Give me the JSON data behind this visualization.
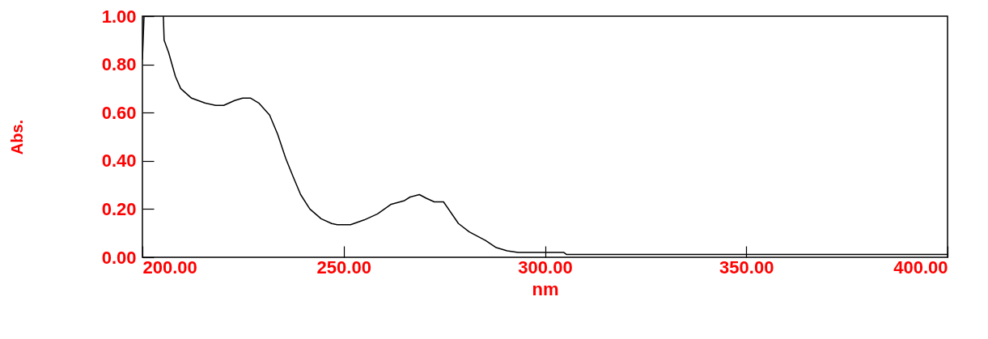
{
  "chart_data": {
    "type": "line",
    "xlabel": "nm",
    "ylabel": "Abs.",
    "x": [
      200,
      200.4,
      203,
      205.2,
      205.4,
      206.5,
      208.2,
      209.5,
      212.2,
      215.5,
      218.2,
      220.2,
      222.9,
      224.9,
      226.9,
      228.9,
      231.6,
      233.6,
      235.6,
      237.3,
      239.3,
      241.6,
      244.4,
      247.0,
      248.4,
      251.7,
      255.1,
      258.4,
      261.8,
      265.1,
      266.5,
      268.8,
      270.5,
      272.5,
      274.8,
      278.5,
      281.2,
      285.2,
      287.9,
      290.6,
      293.3,
      304.7,
      305.3,
      350,
      400
    ],
    "series": [
      {
        "color": "#000000",
        "values": [
          0.82,
          1.0,
          null,
          1.0,
          0.9,
          0.85,
          0.75,
          0.7,
          0.66,
          0.64,
          0.63,
          0.63,
          0.65,
          0.66,
          0.66,
          0.64,
          0.59,
          0.51,
          0.41,
          0.34,
          0.26,
          0.2,
          0.16,
          0.14,
          0.135,
          0.135,
          0.155,
          0.18,
          0.22,
          0.235,
          0.25,
          0.26,
          0.245,
          0.23,
          0.23,
          0.14,
          0.105,
          0.07,
          0.04,
          0.027,
          0.02,
          0.02,
          0.012,
          0.012,
          0.012
        ]
      }
    ],
    "xlim": [
      200,
      400
    ],
    "xticks": [
      {
        "value": 200,
        "label": "200.00"
      },
      {
        "value": 250,
        "label": "250.00"
      },
      {
        "value": 300,
        "label": "300.00"
      },
      {
        "value": 350,
        "label": "350.00"
      },
      {
        "value": 400,
        "label": "400.00"
      }
    ],
    "ylim": [
      0,
      1
    ],
    "yticks": [
      {
        "value": 0,
        "label": "0.00"
      },
      {
        "value": 0.2,
        "label": "0.20"
      },
      {
        "value": 0.4,
        "label": "0.40"
      },
      {
        "value": 0.6,
        "label": "0.60"
      },
      {
        "value": 0.8,
        "label": "0.80"
      },
      {
        "value": 1,
        "label": "1.00"
      }
    ],
    "grid": false,
    "marker": "none",
    "line_style": "solid"
  }
}
